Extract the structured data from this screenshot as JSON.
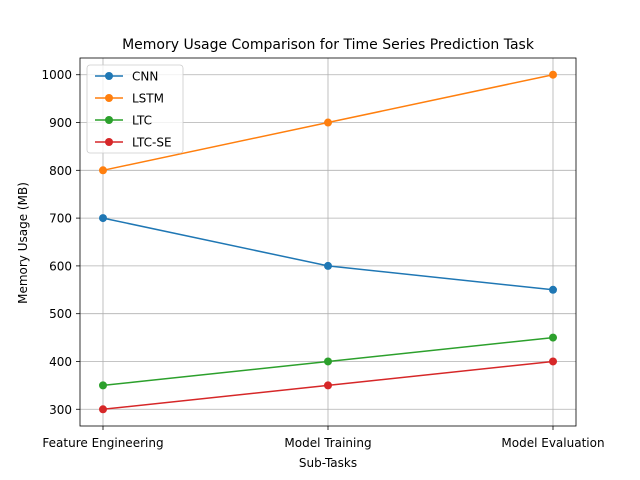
{
  "chart_data": {
    "type": "line",
    "title": "Memory Usage Comparison for Time Series Prediction Task",
    "xlabel": "Sub-Tasks",
    "ylabel": "Memory Usage (MB)",
    "categories": [
      "Feature Engineering",
      "Model Training",
      "Model Evaluation"
    ],
    "yticks": [
      300,
      400,
      500,
      600,
      700,
      800,
      900,
      1000
    ],
    "ylim": [
      265,
      1035
    ],
    "grid": true,
    "legend_position": "upper-left",
    "series": [
      {
        "name": "CNN",
        "color": "#1f77b4",
        "values": [
          700,
          600,
          550
        ]
      },
      {
        "name": "LSTM",
        "color": "#ff7f0e",
        "values": [
          800,
          900,
          1000
        ]
      },
      {
        "name": "LTC",
        "color": "#2ca02c",
        "values": [
          350,
          400,
          450
        ]
      },
      {
        "name": "LTC-SE",
        "color": "#d62728",
        "values": [
          300,
          350,
          400
        ]
      }
    ]
  }
}
